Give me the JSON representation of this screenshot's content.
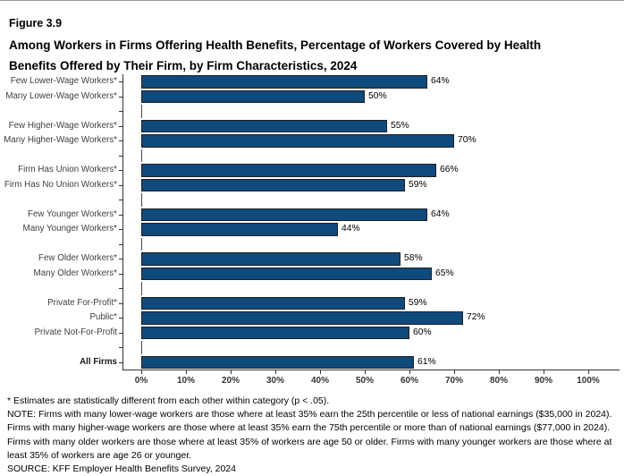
{
  "header": {
    "figure_label": "Figure 3.9",
    "title_line1": "Among Workers in Firms Offering Health Benefits, Percentage of Workers Covered by Health",
    "title_line2": "Benefits Offered by Their Firm, by Firm Characteristics, 2024"
  },
  "chart_data": {
    "type": "bar",
    "orientation": "horizontal",
    "unit": "%",
    "xlim": [
      0,
      100
    ],
    "x_tick_labels": [
      "0%",
      "10%",
      "20%",
      "30%",
      "40%",
      "50%",
      "60%",
      "70%",
      "80%",
      "90%",
      "100%"
    ],
    "grid": false,
    "legend": "none",
    "bar_color": "#0F4A7D",
    "bar_border_color": "#1F1F1F",
    "axis_color": "#333333",
    "rows": [
      {
        "label": "Few Lower-Wage Workers*",
        "value": 64
      },
      {
        "label": "Many Lower-Wage Workers*",
        "value": 50
      },
      {
        "spacer": true
      },
      {
        "label": "Few Higher-Wage Workers*",
        "value": 55
      },
      {
        "label": "Many Higher-Wage Workers*",
        "value": 70
      },
      {
        "spacer": true
      },
      {
        "label": "Firm Has Union Workers*",
        "value": 66
      },
      {
        "label": "Firm Has No Union Workers*",
        "value": 59
      },
      {
        "spacer": true
      },
      {
        "label": "Few Younger Workers*",
        "value": 64
      },
      {
        "label": "Many Younger Workers*",
        "value": 44
      },
      {
        "spacer": true
      },
      {
        "label": "Few Older Workers*",
        "value": 58
      },
      {
        "label": "Many Older Workers*",
        "value": 65
      },
      {
        "spacer": true
      },
      {
        "label": "Private For-Profit*",
        "value": 59
      },
      {
        "label": "Public*",
        "value": 72
      },
      {
        "label": "Private Not-For-Profit",
        "value": 60
      },
      {
        "spacer": true
      },
      {
        "label": "All Firms",
        "value": 61,
        "bold": true
      }
    ]
  },
  "footnotes": {
    "asterisk": "* Estimates are statistically different from each other within category (p < .05).",
    "note": "NOTE: Firms with many lower-wage workers are those where at least 35% earn the 25th percentile or less of national earnings ($35,000 in 2024). Firms with many higher-wage workers are those where at least 35% earn the 75th percentile or more than of national earnings ($77,000 in 2024). Firms with many older workers are those where at least 35% of workers are age 50 or older. Firms with many younger workers are those where at least 35% of workers are age 26 or younger.",
    "source": "SOURCE: KFF Employer Health Benefits Survey, 2024"
  }
}
